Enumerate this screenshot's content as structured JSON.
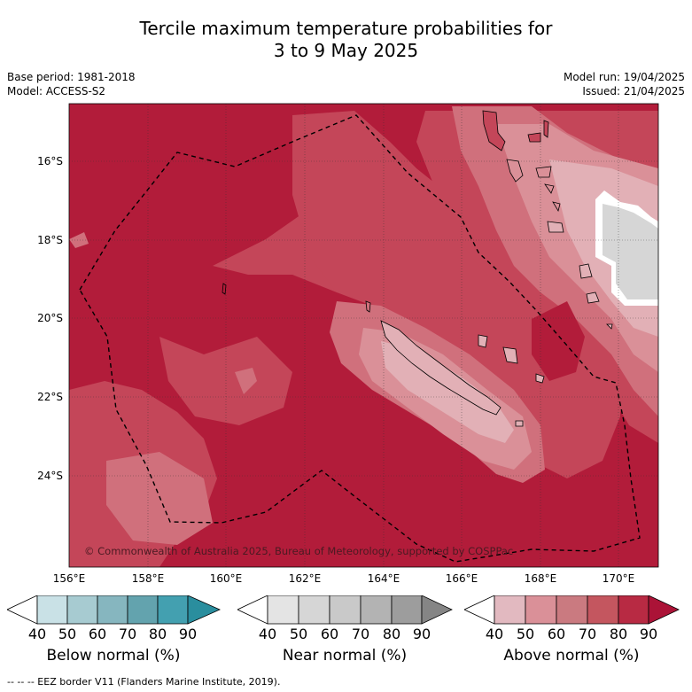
{
  "title": {
    "line1": "Tercile maximum temperature probabilities for",
    "line2": "3 to 9 May 2025"
  },
  "meta": {
    "base_period": "Base period: 1981-2018",
    "model": "Model: ACCESS-S2",
    "model_run": "Model run: 19/04/2025",
    "issued": "Issued: 21/04/2025"
  },
  "map": {
    "lat_labels": [
      "16°S",
      "18°S",
      "20°S",
      "22°S",
      "24°S"
    ],
    "lon_labels": [
      "156°E",
      "158°E",
      "160°E",
      "162°E",
      "164°E",
      "166°E",
      "168°E",
      "170°E"
    ],
    "copyright": "© Commonwealth of Australia 2025, Bureau of Meteorology, supported by COSPPac",
    "colors": {
      "above_90": "#b21c3a",
      "above_80": "#c44659",
      "above_70": "#d0707c",
      "above_60": "#da9098",
      "above_50": "#e2b0b6",
      "near": "#d6d6d6",
      "land": "#ffffff",
      "coast": "#000000"
    }
  },
  "colorbars": [
    {
      "label": "Below normal (%)",
      "ticks": [
        "40",
        "50",
        "60",
        "70",
        "80",
        "90"
      ],
      "colors": [
        "#ffffff",
        "#c9e1e6",
        "#a7cbd1",
        "#86b6bf",
        "#63a3ae",
        "#43a0b0",
        "#2a8e9e"
      ]
    },
    {
      "label": "Near normal (%)",
      "ticks": [
        "40",
        "50",
        "60",
        "70",
        "80",
        "90"
      ],
      "colors": [
        "#ffffff",
        "#e4e4e4",
        "#d6d6d6",
        "#c9c9c9",
        "#b3b3b3",
        "#9d9d9d",
        "#858585"
      ]
    },
    {
      "label": "Above normal (%)",
      "ticks": [
        "40",
        "50",
        "60",
        "70",
        "80",
        "90"
      ],
      "colors": [
        "#ffffff",
        "#e2b9c0",
        "#da9098",
        "#ca7a80",
        "#c4565f",
        "#b82a43",
        "#ab1337"
      ]
    }
  ],
  "footnote": "--  --  -- EEZ border V11 (Flanders Marine Institute, 2019)."
}
